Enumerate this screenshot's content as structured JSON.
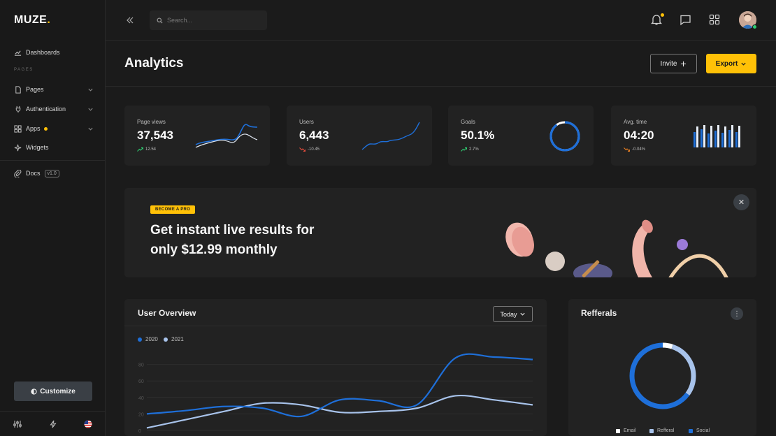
{
  "app": {
    "logo_text": "MUZE",
    "accent_color": "#ffc107"
  },
  "sidebar": {
    "section_label": "PAGES",
    "items": [
      {
        "label": "Dashboards",
        "icon": "dashboard-icon"
      },
      {
        "label": "Pages",
        "icon": "file-icon",
        "expandable": true
      },
      {
        "label": "Authentication",
        "icon": "plug-icon",
        "expandable": true
      },
      {
        "label": "Apps",
        "icon": "grid-icon",
        "expandable": true,
        "has_badge": true
      },
      {
        "label": "Widgets",
        "icon": "sparkle-icon"
      },
      {
        "label": "Docs",
        "icon": "paperclip-icon",
        "version": "v1.0"
      }
    ],
    "customize_label": "Customize",
    "bottom_icons": [
      "sliders-icon",
      "bolt-icon",
      "us-flag-icon"
    ]
  },
  "topbar": {
    "search_placeholder": "Search...",
    "icons": [
      "bell-icon",
      "chat-icon",
      "apps-grid-icon"
    ],
    "has_notification": true
  },
  "header": {
    "title": "Analytics",
    "invite_label": "Invite",
    "export_label": "Export"
  },
  "stats": [
    {
      "label": "Page views",
      "value": "37,543",
      "change": "12.54",
      "trend": "up"
    },
    {
      "label": "Users",
      "value": "6,443",
      "change": "-10.45",
      "trend": "down"
    },
    {
      "label": "Goals",
      "value": "50.1%",
      "change": "2.7%",
      "trend": "up",
      "goal_fraction": 0.9
    },
    {
      "label": "Avg. time",
      "value": "04:20",
      "change": "-0.04%",
      "trend": "down"
    }
  ],
  "promo": {
    "badge": "BECOME A PRO",
    "line1": "Get instant live results for",
    "line2": "only $12.99 monthly"
  },
  "user_overview": {
    "title": "User Overview",
    "range_label": "Today"
  },
  "referrals": {
    "title": "Refferals"
  },
  "chart_data": [
    {
      "type": "line",
      "title": "User Overview",
      "x": [
        0,
        1,
        2,
        3,
        4,
        5,
        6,
        7,
        8,
        9,
        10
      ],
      "ylim": [
        0,
        100
      ],
      "yticks": [
        0,
        20,
        40,
        60,
        80
      ],
      "grid": true,
      "legend_position": "top-left",
      "series": [
        {
          "name": "2020",
          "color": "#1e6fd9",
          "values": [
            20,
            24,
            29,
            27,
            17,
            37,
            36,
            31,
            88,
            89,
            86
          ]
        },
        {
          "name": "2021",
          "color": "#a8c3eb",
          "values": [
            3,
            13,
            23,
            33,
            31,
            22,
            23,
            27,
            42,
            37,
            31
          ]
        }
      ]
    },
    {
      "type": "pie",
      "title": "Refferals",
      "categories": [
        "Email",
        "Refferal",
        "Social"
      ],
      "values": [
        5,
        30,
        65
      ],
      "colors": [
        "#ffffff",
        "#a8c3eb",
        "#1e6fd9"
      ],
      "legend_position": "bottom"
    }
  ]
}
